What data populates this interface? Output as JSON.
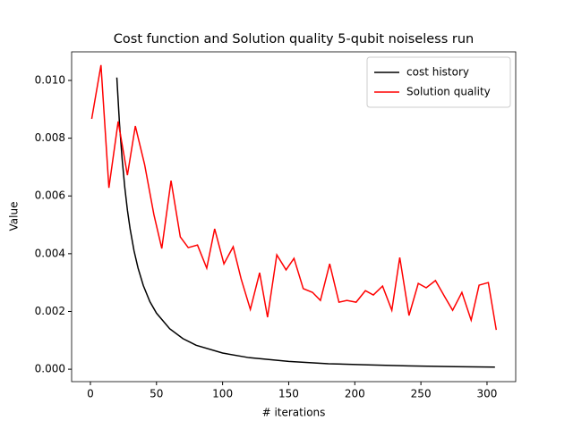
{
  "chart_data": {
    "type": "line",
    "title": "Cost function and Solution quality 5-qubit noiseless run",
    "x_label": "# iterations",
    "y_label": "Value",
    "xlim": [
      -14.2,
      321.7
    ],
    "ylim": [
      -0.00043,
      0.01099
    ],
    "xticks": [
      0,
      50,
      100,
      150,
      200,
      250,
      300
    ],
    "yticks": [
      {
        "value": 0,
        "label": "0.000"
      },
      {
        "value": 0.002,
        "label": "0.002"
      },
      {
        "value": 0.004,
        "label": "0.004"
      },
      {
        "value": 0.006,
        "label": "0.006"
      },
      {
        "value": 0.008,
        "label": "0.008"
      },
      {
        "value": 0.01,
        "label": "0.010"
      }
    ],
    "legend": "upper right",
    "grid": false,
    "series": [
      {
        "name": "cost history",
        "color": "#000000",
        "x": [
          20,
          22,
          24,
          26,
          28,
          30,
          33,
          36,
          40,
          45,
          50,
          60,
          70,
          80,
          100,
          120,
          150,
          180,
          210,
          240,
          270,
          306
        ],
        "values": [
          0.0101,
          0.00851,
          0.00728,
          0.0063,
          0.00551,
          0.00487,
          0.0041,
          0.00351,
          0.0029,
          0.00234,
          0.00194,
          0.0014,
          0.00106,
          0.00083,
          0.00056,
          0.0004,
          0.00027,
          0.00019,
          0.00015,
          0.000115,
          9.3e-05,
          7.4e-05
        ]
      },
      {
        "name": "Solution quality",
        "color": "#ff0000",
        "x": [
          1,
          8,
          14,
          21,
          28,
          34,
          41,
          48,
          54,
          61,
          68,
          74,
          81,
          88,
          94,
          101,
          108,
          114,
          121,
          128,
          134,
          141,
          148,
          154,
          161,
          168,
          174,
          181,
          188,
          194,
          201,
          208,
          214,
          221,
          228,
          234,
          241,
          248,
          254,
          261,
          268,
          274,
          281,
          288,
          294,
          301,
          307
        ],
        "values": [
          0.00867,
          0.01053,
          0.00628,
          0.00858,
          0.00672,
          0.00842,
          0.00709,
          0.00536,
          0.00418,
          0.00653,
          0.00458,
          0.00421,
          0.0043,
          0.0035,
          0.00486,
          0.00365,
          0.00424,
          0.00313,
          0.00207,
          0.00334,
          0.0018,
          0.00396,
          0.00344,
          0.00384,
          0.00279,
          0.00266,
          0.00238,
          0.00365,
          0.00232,
          0.00238,
          0.00232,
          0.00272,
          0.00257,
          0.00288,
          0.00204,
          0.00387,
          0.00186,
          0.00297,
          0.00282,
          0.00307,
          0.00251,
          0.00204,
          0.00266,
          0.0017,
          0.00291,
          0.003,
          0.00136
        ]
      }
    ]
  }
}
